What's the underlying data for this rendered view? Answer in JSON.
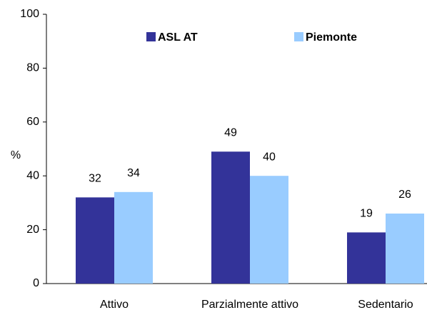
{
  "chart_data": {
    "type": "bar",
    "categories": [
      "Attivo",
      "Parzialmente attivo",
      "Sedentario"
    ],
    "series": [
      {
        "name": "ASL AT",
        "color": "#333399",
        "values": [
          32,
          49,
          19
        ]
      },
      {
        "name": "Piemonte",
        "color": "#99ccff",
        "values": [
          34,
          40,
          26
        ]
      }
    ],
    "y_label": "%",
    "ylim": [
      0,
      100
    ],
    "yticks": [
      0,
      20,
      40,
      60,
      80,
      100
    ],
    "grid": false,
    "legend": "top"
  }
}
